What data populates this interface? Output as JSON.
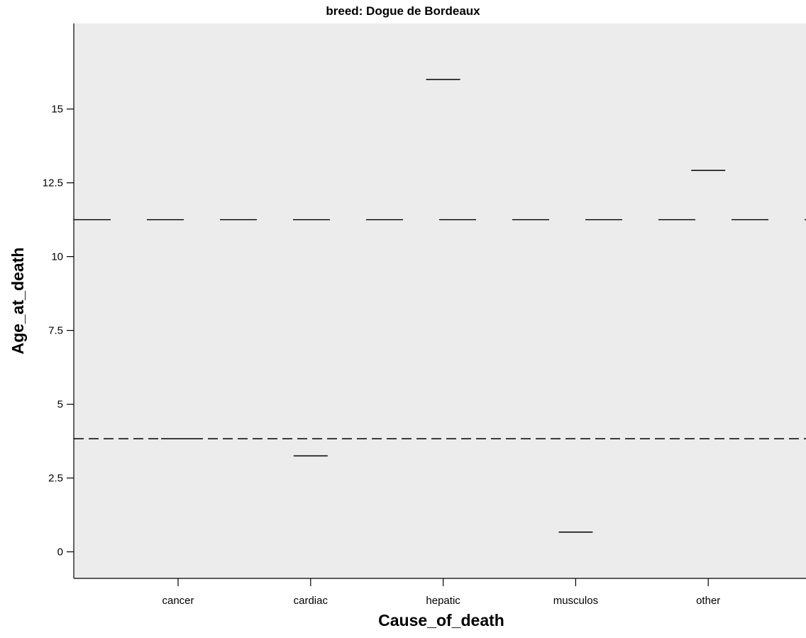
{
  "chart_data": {
    "type": "box",
    "title": "breed: Dogue de Bordeaux",
    "xlabel": "Cause_of_death",
    "ylabel": "Age_at_death",
    "categories": [
      "cancer",
      "cardiac",
      "hepatic",
      "musculos",
      "other"
    ],
    "values": [
      3.83,
      3.25,
      16.0,
      0.67,
      12.92
    ],
    "ylim": [
      -0.9,
      17.9
    ],
    "yticks": [
      0,
      2.5,
      5,
      7.5,
      10,
      12.5,
      15
    ],
    "ytick_labels": [
      "0",
      "2.5",
      "5",
      "7.5",
      "10",
      "12.5",
      "15"
    ],
    "reference_lines": [
      {
        "y": 11.25,
        "style": "long-dash"
      },
      {
        "y": 3.83,
        "style": "short-dash"
      }
    ],
    "grid": false,
    "colors": {
      "plot_background": "#ececec",
      "line": "#000000"
    }
  }
}
